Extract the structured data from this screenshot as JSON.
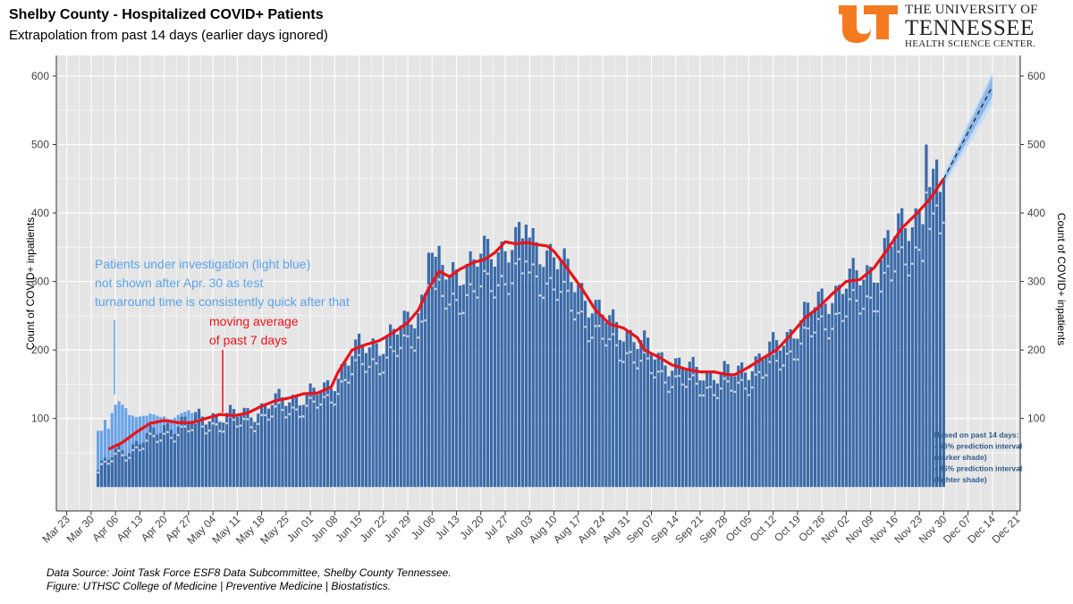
{
  "header": {
    "title": "Shelby County - Hospitalized COVID+ Patients",
    "subtitle": "Extrapolation from past 14 days (earlier days ignored)"
  },
  "logo": {
    "line1": "THE UNIVERSITY OF",
    "line2": "TENNESSEE",
    "line3": "HEALTH SCIENCE CENTER.",
    "mark_icon": "ut-power-t-logo-icon"
  },
  "footer": {
    "source": "Data Source: Joint Task Force ESF8 Data Subcommittee, Shelby County Tennessee.",
    "figure": "Figure: UTHSC College of Medicine | Preventive Medicine | Biostatistics."
  },
  "chart_data": {
    "type": "bar",
    "title": "Shelby County - Hospitalized COVID+ Patients",
    "subtitle": "Extrapolation from past 14 days (earlier days ignored)",
    "ylabel": "Count of COVID+ inpatients",
    "ylabel_right": "Count of COVID+ inpatients",
    "ylim": [
      -35,
      630
    ],
    "yticks": [
      100,
      200,
      300,
      400,
      500,
      600
    ],
    "ytick_labels": [
      "100",
      "200",
      "300",
      "400",
      "500",
      "600"
    ],
    "xlim_days": [
      -3,
      274
    ],
    "x_ticks": [
      {
        "label": "Mar 23",
        "day": 0
      },
      {
        "label": "Mar 30",
        "day": 7
      },
      {
        "label": "Apr 06",
        "day": 14
      },
      {
        "label": "Apr 13",
        "day": 21
      },
      {
        "label": "Apr 20",
        "day": 28
      },
      {
        "label": "Apr 27",
        "day": 35
      },
      {
        "label": "May 04",
        "day": 42
      },
      {
        "label": "May 11",
        "day": 49
      },
      {
        "label": "May 18",
        "day": 56
      },
      {
        "label": "May 25",
        "day": 63
      },
      {
        "label": "Jun 01",
        "day": 70
      },
      {
        "label": "Jun 08",
        "day": 77
      },
      {
        "label": "Jun 15",
        "day": 84
      },
      {
        "label": "Jun 22",
        "day": 91
      },
      {
        "label": "Jun 29",
        "day": 98
      },
      {
        "label": "Jul 06",
        "day": 105
      },
      {
        "label": "Jul 13",
        "day": 112
      },
      {
        "label": "Jul 20",
        "day": 119
      },
      {
        "label": "Jul 27",
        "day": 126
      },
      {
        "label": "Aug 03",
        "day": 133
      },
      {
        "label": "Aug 10",
        "day": 140
      },
      {
        "label": "Aug 17",
        "day": 147
      },
      {
        "label": "Aug 24",
        "day": 154
      },
      {
        "label": "Aug 31",
        "day": 161
      },
      {
        "label": "Sep 07",
        "day": 168
      },
      {
        "label": "Sep 14",
        "day": 175
      },
      {
        "label": "Sep 21",
        "day": 182
      },
      {
        "label": "Sep 28",
        "day": 189
      },
      {
        "label": "Oct 05",
        "day": 196
      },
      {
        "label": "Oct 12",
        "day": 203
      },
      {
        "label": "Oct 19",
        "day": 210
      },
      {
        "label": "Oct 26",
        "day": 217
      },
      {
        "label": "Nov 02",
        "day": 224
      },
      {
        "label": "Nov 09",
        "day": 231
      },
      {
        "label": "Nov 16",
        "day": 238
      },
      {
        "label": "Nov 23",
        "day": 245
      },
      {
        "label": "Nov 30",
        "day": 252
      },
      {
        "label": "Dec 07",
        "day": 259
      },
      {
        "label": "Dec 14",
        "day": 266
      },
      {
        "label": "Dec 21",
        "day": 273
      }
    ],
    "bar_series_anchors": {
      "name": "Confirmed COVID+ inpatients (dark blue bars)",
      "points": [
        [
          9,
          28
        ],
        [
          12,
          40
        ],
        [
          14,
          50
        ],
        [
          18,
          58
        ],
        [
          22,
          72
        ],
        [
          26,
          80
        ],
        [
          30,
          92
        ],
        [
          34,
          96
        ],
        [
          38,
          100
        ],
        [
          42,
          106
        ],
        [
          46,
          104
        ],
        [
          50,
          106
        ],
        [
          54,
          112
        ],
        [
          58,
          120
        ],
        [
          62,
          128
        ],
        [
          66,
          132
        ],
        [
          70,
          136
        ],
        [
          74,
          140
        ],
        [
          78,
          166
        ],
        [
          82,
          196
        ],
        [
          86,
          206
        ],
        [
          90,
          212
        ],
        [
          94,
          224
        ],
        [
          98,
          240
        ],
        [
          101,
          262
        ],
        [
          104,
          300
        ],
        [
          107,
          322
        ],
        [
          110,
          308
        ],
        [
          113,
          322
        ],
        [
          117,
          330
        ],
        [
          120,
          336
        ],
        [
          124,
          348
        ],
        [
          128,
          360
        ],
        [
          132,
          356
        ],
        [
          136,
          354
        ],
        [
          140,
          340
        ],
        [
          144,
          310
        ],
        [
          148,
          290
        ],
        [
          152,
          260
        ],
        [
          156,
          240
        ],
        [
          160,
          232
        ],
        [
          164,
          216
        ],
        [
          168,
          196
        ],
        [
          172,
          186
        ],
        [
          176,
          178
        ],
        [
          180,
          170
        ],
        [
          184,
          168
        ],
        [
          188,
          166
        ],
        [
          192,
          165
        ],
        [
          196,
          178
        ],
        [
          200,
          192
        ],
        [
          204,
          206
        ],
        [
          208,
          228
        ],
        [
          212,
          250
        ],
        [
          216,
          268
        ],
        [
          220,
          284
        ],
        [
          224,
          300
        ],
        [
          228,
          306
        ],
        [
          232,
          322
        ],
        [
          236,
          350
        ],
        [
          240,
          380
        ],
        [
          244,
          400
        ],
        [
          248,
          418
        ],
        [
          252,
          450
        ]
      ]
    },
    "pui_series": {
      "name": "Patients under investigation (light blue)",
      "values": [
        [
          9,
          82
        ],
        [
          10,
          82
        ],
        [
          11,
          98
        ],
        [
          12,
          85
        ],
        [
          13,
          108
        ],
        [
          14,
          120
        ],
        [
          15,
          125
        ],
        [
          16,
          120
        ],
        [
          17,
          115
        ],
        [
          18,
          105
        ],
        [
          19,
          104
        ],
        [
          20,
          102
        ],
        [
          21,
          103
        ],
        [
          22,
          104
        ],
        [
          23,
          104
        ],
        [
          24,
          107
        ],
        [
          25,
          106
        ],
        [
          26,
          104
        ],
        [
          27,
          102
        ],
        [
          28,
          103
        ],
        [
          29,
          100
        ],
        [
          30,
          99
        ],
        [
          31,
          101
        ],
        [
          32,
          105
        ],
        [
          33,
          108
        ],
        [
          34,
          110
        ],
        [
          35,
          112
        ],
        [
          36,
          108
        ],
        [
          37,
          104
        ],
        [
          38,
          106
        ]
      ]
    },
    "moving_average": {
      "name": "moving average of past 7 days",
      "color": "#e8141b",
      "points": [
        [
          12,
          55
        ],
        [
          16,
          65
        ],
        [
          20,
          80
        ],
        [
          24,
          93
        ],
        [
          28,
          97
        ],
        [
          32,
          94
        ],
        [
          36,
          94
        ],
        [
          40,
          100
        ],
        [
          44,
          106
        ],
        [
          48,
          104
        ],
        [
          52,
          108
        ],
        [
          56,
          118
        ],
        [
          60,
          126
        ],
        [
          64,
          130
        ],
        [
          68,
          136
        ],
        [
          72,
          137
        ],
        [
          76,
          146
        ],
        [
          78,
          168
        ],
        [
          82,
          200
        ],
        [
          86,
          208
        ],
        [
          90,
          214
        ],
        [
          94,
          226
        ],
        [
          98,
          240
        ],
        [
          101,
          258
        ],
        [
          104,
          290
        ],
        [
          107,
          315
        ],
        [
          110,
          307
        ],
        [
          113,
          318
        ],
        [
          117,
          328
        ],
        [
          120,
          332
        ],
        [
          123,
          342
        ],
        [
          126,
          358
        ],
        [
          129,
          355
        ],
        [
          132,
          357
        ],
        [
          135,
          354
        ],
        [
          138,
          352
        ],
        [
          140,
          344
        ],
        [
          144,
          318
        ],
        [
          148,
          290
        ],
        [
          152,
          258
        ],
        [
          156,
          238
        ],
        [
          160,
          232
        ],
        [
          164,
          218
        ],
        [
          166,
          200
        ],
        [
          170,
          190
        ],
        [
          174,
          178
        ],
        [
          178,
          172
        ],
        [
          182,
          168
        ],
        [
          186,
          168
        ],
        [
          190,
          164
        ],
        [
          192,
          164
        ],
        [
          196,
          175
        ],
        [
          200,
          188
        ],
        [
          204,
          200
        ],
        [
          208,
          222
        ],
        [
          212,
          246
        ],
        [
          216,
          262
        ],
        [
          220,
          282
        ],
        [
          224,
          300
        ],
        [
          228,
          303
        ],
        [
          232,
          320
        ],
        [
          236,
          348
        ],
        [
          240,
          378
        ],
        [
          244,
          398
        ],
        [
          248,
          420
        ],
        [
          252,
          450
        ]
      ]
    },
    "extrapolation": {
      "start_day": 252,
      "end_day": 266,
      "fit_start": 450,
      "fit_end": 585,
      "pi66": [
        [
          252,
          444,
          452
        ],
        [
          266,
          570,
          600
        ]
      ],
      "pi95": [
        [
          252,
          438,
          458
        ],
        [
          266,
          558,
          606
        ]
      ]
    },
    "colors": {
      "bar": "#3a6aa8",
      "bar_light": "#6aa3e8",
      "panel": "#e5e5e5",
      "grid": "#ffffff",
      "ma_line": "#e8141b",
      "pui_text": "#5aa3e8",
      "note_text": "#2f5b8c",
      "band_dark": "#8eb8ec",
      "band_light": "#c5dcf5"
    },
    "annotations": {
      "pui": [
        "Patients under investigation (light blue)",
        "not shown after Apr. 30 as test",
        "turnaround time is consistently quick after that"
      ],
      "ma": [
        "moving average",
        "of past 7 days"
      ],
      "pi": [
        "Based on past 14 days:",
        "- 66% prediction interval",
        "(darker shade)",
        "- 95% prediction interval",
        "(lighter shade)"
      ]
    }
  }
}
